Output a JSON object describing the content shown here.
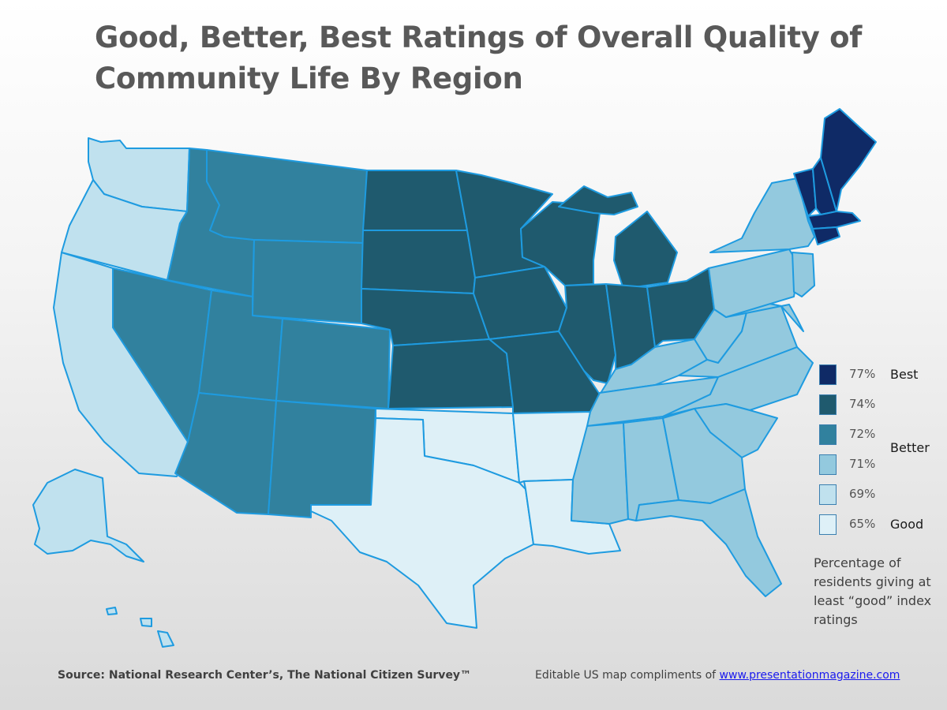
{
  "title_line1": "Good, Better, Best Ratings of Overall Quality of",
  "title_line2": "Community Life By Region",
  "legend": [
    {
      "label": "77%",
      "color": "#0f2a66"
    },
    {
      "label": "74%",
      "color": "#1f5a6e"
    },
    {
      "label": "72%",
      "color": "#31819e"
    },
    {
      "label": "71%",
      "color": "#93c9de"
    },
    {
      "label": "69%",
      "color": "#c0e1ee"
    },
    {
      "label": "65%",
      "color": "#def0f7"
    }
  ],
  "tiers": {
    "best": "Best",
    "better": "Better",
    "good": "Good"
  },
  "note": "Percentage of residents giving at least “good” index ratings",
  "source_prefix": "Source",
  "source_text": ": National Research Center’s, The National Citizen Survey™",
  "credit_text": "Editable US map compliments of ",
  "credit_link": "www.presentationmagazine.com",
  "regions": [
    {
      "name": "Pacific",
      "percent": 69
    },
    {
      "name": "Mountain",
      "percent": 72
    },
    {
      "name": "West North Central",
      "percent": 74
    },
    {
      "name": "East North Central",
      "percent": 74
    },
    {
      "name": "West South Central",
      "percent": 65
    },
    {
      "name": "East South Central",
      "percent": 71
    },
    {
      "name": "South Atlantic",
      "percent": 71
    },
    {
      "name": "Middle Atlantic",
      "percent": 71
    },
    {
      "name": "New England",
      "percent": 77
    }
  ]
}
